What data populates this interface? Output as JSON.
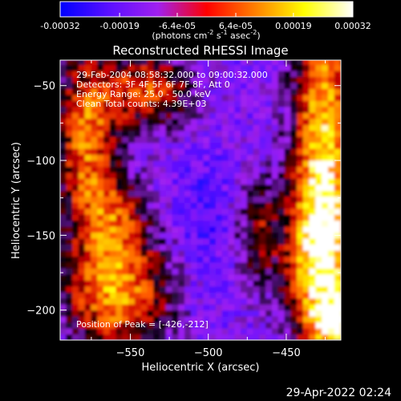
{
  "chart_data": {
    "type": "heatmap",
    "title": "Reconstructed RHESSI Image",
    "xlabel": "Heliocentric X (arcsec)",
    "ylabel": "Heliocentric Y (arcsec)",
    "xlim": [
      -595,
      -415
    ],
    "ylim": [
      -220,
      -33
    ],
    "x_ticks": [
      -550,
      -500,
      -450
    ],
    "y_ticks": [
      -50,
      -100,
      -150,
      -200
    ],
    "colorbar": {
      "range": [
        -0.00032,
        0.00032
      ],
      "ticks": [
        -0.00032,
        -0.00019,
        -6.4e-05,
        6.4e-05,
        0.00019,
        0.00032
      ],
      "tick_labels": [
        "-0.00032",
        "-0.00019",
        "-6.4e-05",
        "6.4e-05",
        "0.00019",
        "0.00032"
      ],
      "unit_label": "(photons cm",
      "unit_sup1": "-2",
      "unit_mid": " s",
      "unit_sup2": "-1",
      "unit_mid2": " asec",
      "unit_sup3": "-2",
      "unit_end": ")",
      "colormap": [
        "#0000ff",
        "#5a10ff",
        "#a020f0",
        "#ff0000",
        "#ff8000",
        "#ffff00",
        "#ffffff"
      ]
    },
    "annotations": [
      "29-Feb-2004 08:58:32.000 to 09:00:32.000",
      "Detectors: 3F 4F 5F 6F 7F 8F, Att 0",
      "Energy Range: 25.0 - 50.0 keV",
      "Clean     Total counts: 4.39E+03"
    ],
    "peak_label": "Position of Peak = [-426,-212]",
    "peak": [
      -426,
      -212
    ]
  },
  "footer": {
    "datestamp": "29-Apr-2022 02:24"
  }
}
